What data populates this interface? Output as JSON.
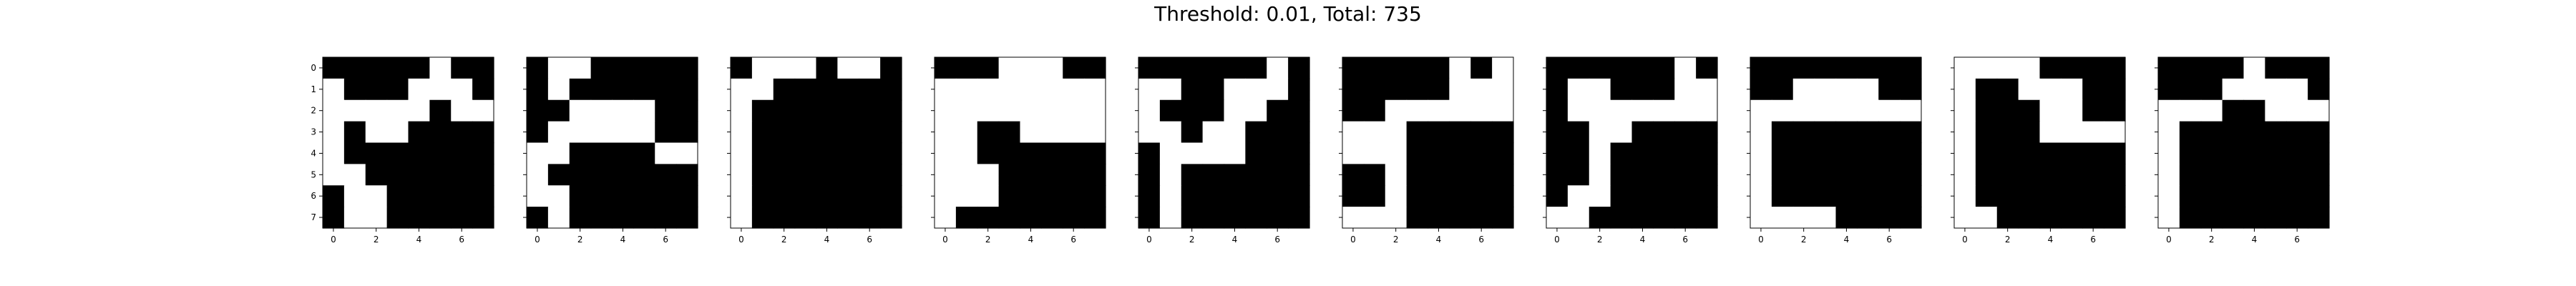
{
  "figure": {
    "title": "Threshold: 0.01, Total: 735",
    "background": "#ffffff"
  },
  "chart_data": {
    "type": "heatmap",
    "colormap": {
      "0": "#000000",
      "1": "#ffffff"
    },
    "grid_size": [
      8,
      8
    ],
    "xticks": [
      0,
      2,
      4,
      6
    ],
    "yticks": [
      0,
      1,
      2,
      3,
      4,
      5,
      6,
      7
    ],
    "panels": [
      {
        "matrix": [
          [
            0,
            0,
            0,
            0,
            0,
            1,
            0,
            0
          ],
          [
            1,
            0,
            0,
            0,
            1,
            1,
            1,
            0
          ],
          [
            1,
            1,
            1,
            1,
            1,
            0,
            1,
            1
          ],
          [
            1,
            0,
            1,
            1,
            0,
            0,
            0,
            0
          ],
          [
            1,
            0,
            0,
            0,
            0,
            0,
            0,
            0
          ],
          [
            1,
            1,
            0,
            0,
            0,
            0,
            0,
            0
          ],
          [
            0,
            1,
            1,
            0,
            0,
            0,
            0,
            0
          ],
          [
            0,
            1,
            1,
            0,
            0,
            0,
            0,
            0
          ]
        ]
      },
      {
        "matrix": [
          [
            0,
            1,
            1,
            0,
            0,
            0,
            0,
            0
          ],
          [
            0,
            1,
            0,
            0,
            0,
            0,
            0,
            0
          ],
          [
            0,
            0,
            1,
            1,
            1,
            1,
            0,
            0
          ],
          [
            0,
            1,
            1,
            1,
            1,
            1,
            0,
            0
          ],
          [
            1,
            1,
            0,
            0,
            0,
            0,
            1,
            1
          ],
          [
            1,
            0,
            0,
            0,
            0,
            0,
            0,
            0
          ],
          [
            1,
            1,
            0,
            0,
            0,
            0,
            0,
            0
          ],
          [
            0,
            1,
            0,
            0,
            0,
            0,
            0,
            0
          ]
        ]
      },
      {
        "matrix": [
          [
            0,
            1,
            1,
            1,
            0,
            1,
            1,
            0
          ],
          [
            1,
            1,
            0,
            0,
            0,
            0,
            0,
            0
          ],
          [
            1,
            0,
            0,
            0,
            0,
            0,
            0,
            0
          ],
          [
            1,
            0,
            0,
            0,
            0,
            0,
            0,
            0
          ],
          [
            1,
            0,
            0,
            0,
            0,
            0,
            0,
            0
          ],
          [
            1,
            0,
            0,
            0,
            0,
            0,
            0,
            0
          ],
          [
            1,
            0,
            0,
            0,
            0,
            0,
            0,
            0
          ],
          [
            1,
            0,
            0,
            0,
            0,
            0,
            0,
            0
          ]
        ]
      },
      {
        "matrix": [
          [
            0,
            0,
            0,
            1,
            1,
            1,
            0,
            0
          ],
          [
            1,
            1,
            1,
            1,
            1,
            1,
            1,
            1
          ],
          [
            1,
            1,
            1,
            1,
            1,
            1,
            1,
            1
          ],
          [
            1,
            1,
            0,
            0,
            1,
            1,
            1,
            1
          ],
          [
            1,
            1,
            0,
            0,
            0,
            0,
            0,
            0
          ],
          [
            1,
            1,
            1,
            0,
            0,
            0,
            0,
            0
          ],
          [
            1,
            1,
            1,
            0,
            0,
            0,
            0,
            0
          ],
          [
            1,
            0,
            0,
            0,
            0,
            0,
            0,
            0
          ]
        ]
      },
      {
        "matrix": [
          [
            0,
            0,
            0,
            0,
            0,
            0,
            1,
            0
          ],
          [
            1,
            1,
            0,
            0,
            1,
            1,
            1,
            0
          ],
          [
            1,
            0,
            0,
            0,
            1,
            1,
            0,
            0
          ],
          [
            1,
            1,
            0,
            1,
            1,
            0,
            0,
            0
          ],
          [
            0,
            1,
            1,
            1,
            1,
            0,
            0,
            0
          ],
          [
            0,
            1,
            0,
            0,
            0,
            0,
            0,
            0
          ],
          [
            0,
            1,
            0,
            0,
            0,
            0,
            0,
            0
          ],
          [
            0,
            1,
            0,
            0,
            0,
            0,
            0,
            0
          ]
        ]
      },
      {
        "matrix": [
          [
            0,
            0,
            0,
            0,
            0,
            1,
            0,
            1
          ],
          [
            0,
            0,
            0,
            0,
            0,
            1,
            1,
            1
          ],
          [
            0,
            0,
            1,
            1,
            1,
            1,
            1,
            1
          ],
          [
            1,
            1,
            1,
            0,
            0,
            0,
            0,
            0
          ],
          [
            1,
            1,
            1,
            0,
            0,
            0,
            0,
            0
          ],
          [
            0,
            0,
            1,
            0,
            0,
            0,
            0,
            0
          ],
          [
            0,
            0,
            1,
            0,
            0,
            0,
            0,
            0
          ],
          [
            1,
            1,
            1,
            0,
            0,
            0,
            0,
            0
          ]
        ]
      },
      {
        "matrix": [
          [
            0,
            0,
            0,
            0,
            0,
            0,
            1,
            0
          ],
          [
            0,
            1,
            1,
            0,
            0,
            0,
            1,
            1
          ],
          [
            0,
            1,
            1,
            1,
            1,
            1,
            1,
            1
          ],
          [
            0,
            0,
            1,
            1,
            0,
            0,
            0,
            0
          ],
          [
            0,
            0,
            1,
            0,
            0,
            0,
            0,
            0
          ],
          [
            0,
            0,
            1,
            0,
            0,
            0,
            0,
            0
          ],
          [
            0,
            1,
            1,
            0,
            0,
            0,
            0,
            0
          ],
          [
            1,
            1,
            0,
            0,
            0,
            0,
            0,
            0
          ]
        ]
      },
      {
        "matrix": [
          [
            0,
            0,
            0,
            0,
            0,
            0,
            0,
            0
          ],
          [
            0,
            0,
            1,
            1,
            1,
            1,
            0,
            0
          ],
          [
            1,
            1,
            1,
            1,
            1,
            1,
            1,
            1
          ],
          [
            1,
            0,
            0,
            0,
            0,
            0,
            0,
            0
          ],
          [
            1,
            0,
            0,
            0,
            0,
            0,
            0,
            0
          ],
          [
            1,
            0,
            0,
            0,
            0,
            0,
            0,
            0
          ],
          [
            1,
            0,
            0,
            0,
            0,
            0,
            0,
            0
          ],
          [
            1,
            1,
            1,
            1,
            0,
            0,
            0,
            0
          ]
        ]
      },
      {
        "matrix": [
          [
            1,
            1,
            1,
            1,
            0,
            0,
            0,
            0
          ],
          [
            1,
            0,
            0,
            1,
            1,
            1,
            0,
            0
          ],
          [
            1,
            0,
            0,
            0,
            1,
            1,
            0,
            0
          ],
          [
            1,
            0,
            0,
            0,
            1,
            1,
            1,
            1
          ],
          [
            1,
            0,
            0,
            0,
            0,
            0,
            0,
            0
          ],
          [
            1,
            0,
            0,
            0,
            0,
            0,
            0,
            0
          ],
          [
            1,
            0,
            0,
            0,
            0,
            0,
            0,
            0
          ],
          [
            1,
            1,
            0,
            0,
            0,
            0,
            0,
            0
          ]
        ]
      },
      {
        "matrix": [
          [
            0,
            0,
            0,
            0,
            1,
            0,
            0,
            0
          ],
          [
            0,
            0,
            0,
            1,
            1,
            1,
            1,
            0
          ],
          [
            1,
            1,
            1,
            0,
            0,
            1,
            1,
            1
          ],
          [
            1,
            0,
            0,
            0,
            0,
            0,
            0,
            0
          ],
          [
            1,
            0,
            0,
            0,
            0,
            0,
            0,
            0
          ],
          [
            1,
            0,
            0,
            0,
            0,
            0,
            0,
            0
          ],
          [
            1,
            0,
            0,
            0,
            0,
            0,
            0,
            0
          ],
          [
            1,
            0,
            0,
            0,
            0,
            0,
            0,
            0
          ]
        ]
      }
    ]
  }
}
